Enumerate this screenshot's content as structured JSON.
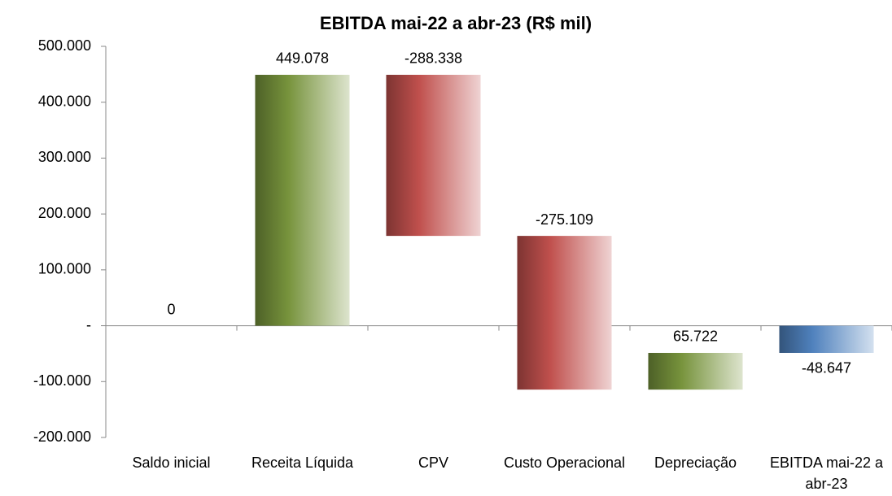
{
  "chart_data": {
    "type": "waterfall",
    "title": "EBITDA mai-22 a abr-23 (R$ mil)",
    "categories": [
      "Saldo inicial",
      "Receita Líquida",
      "CPV",
      "Custo Operacional",
      "Depreciação",
      "EBITDA mai-22 a abr-23"
    ],
    "values": [
      0,
      449078,
      -288338,
      -275109,
      65722,
      -48647
    ],
    "value_labels": [
      "0",
      "449.078",
      "-288.338",
      "-275.109",
      "65.722",
      "-48.647"
    ],
    "colors": {
      "increase": "#77933c",
      "decrease": "#c0504d",
      "total": "#4f81bd"
    },
    "ylim": [
      -200000,
      500000
    ],
    "yticks": [
      {
        "value": -200000,
        "label": "-200.000"
      },
      {
        "value": -100000,
        "label": "-100.000"
      },
      {
        "value": 0,
        "label": "-"
      },
      {
        "value": 100000,
        "label": "100.000"
      },
      {
        "value": 200000,
        "label": "200.000"
      },
      {
        "value": 300000,
        "label": "300.000"
      },
      {
        "value": 400000,
        "label": "400.000"
      },
      {
        "value": 500000,
        "label": "500.000"
      }
    ]
  }
}
